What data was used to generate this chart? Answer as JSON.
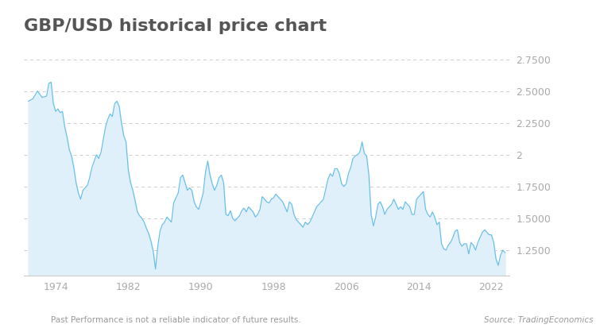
{
  "title": "GBP/USD historical price chart",
  "subtitle_left": "Past Performance is not a reliable indicator of future results.",
  "subtitle_right": "Source: TradingEconomics",
  "yticks": [
    1.25,
    1.5,
    1.75,
    2.0,
    2.25,
    2.5,
    2.75
  ],
  "ytick_labels": [
    "1.2500",
    "1.5000",
    "1.7500",
    "2",
    "2.2500",
    "2.5000",
    "2.7500"
  ],
  "xtick_years": [
    1974,
    1982,
    1990,
    1998,
    2006,
    2014,
    2022
  ],
  "ylim_bottom": 1.05,
  "ylim_top": 2.85,
  "line_color": "#62bde8",
  "fill_color_top": "#c8e8f5",
  "fill_color_bottom": "#dff0fa",
  "background_color": "#ffffff",
  "title_fontsize": 16,
  "tick_fontsize": 9,
  "subtitle_fontsize": 7.5,
  "title_color": "#555555",
  "tick_color": "#aaaaaa",
  "grid_color": "#cccccc",
  "gbpusd_data": [
    [
      1971.0,
      2.42
    ],
    [
      1971.5,
      2.44
    ],
    [
      1972.0,
      2.5
    ],
    [
      1972.5,
      2.45
    ],
    [
      1973.0,
      2.46
    ],
    [
      1973.25,
      2.56
    ],
    [
      1973.5,
      2.57
    ],
    [
      1973.75,
      2.4
    ],
    [
      1974.0,
      2.34
    ],
    [
      1974.25,
      2.36
    ],
    [
      1974.5,
      2.33
    ],
    [
      1974.75,
      2.34
    ],
    [
      1975.0,
      2.22
    ],
    [
      1975.25,
      2.14
    ],
    [
      1975.5,
      2.04
    ],
    [
      1975.75,
      1.99
    ],
    [
      1976.0,
      1.9
    ],
    [
      1976.25,
      1.78
    ],
    [
      1976.5,
      1.7
    ],
    [
      1976.75,
      1.65
    ],
    [
      1977.0,
      1.72
    ],
    [
      1977.25,
      1.74
    ],
    [
      1977.5,
      1.76
    ],
    [
      1977.75,
      1.82
    ],
    [
      1978.0,
      1.9
    ],
    [
      1978.25,
      1.95
    ],
    [
      1978.5,
      2.0
    ],
    [
      1978.75,
      1.97
    ],
    [
      1979.0,
      2.02
    ],
    [
      1979.25,
      2.12
    ],
    [
      1979.5,
      2.22
    ],
    [
      1979.75,
      2.28
    ],
    [
      1980.0,
      2.32
    ],
    [
      1980.25,
      2.3
    ],
    [
      1980.5,
      2.4
    ],
    [
      1980.75,
      2.42
    ],
    [
      1981.0,
      2.38
    ],
    [
      1981.25,
      2.25
    ],
    [
      1981.5,
      2.15
    ],
    [
      1981.75,
      2.1
    ],
    [
      1982.0,
      1.88
    ],
    [
      1982.25,
      1.78
    ],
    [
      1982.5,
      1.72
    ],
    [
      1982.75,
      1.64
    ],
    [
      1983.0,
      1.55
    ],
    [
      1983.25,
      1.52
    ],
    [
      1983.5,
      1.5
    ],
    [
      1983.75,
      1.47
    ],
    [
      1984.0,
      1.42
    ],
    [
      1984.25,
      1.38
    ],
    [
      1984.5,
      1.32
    ],
    [
      1984.75,
      1.24
    ],
    [
      1985.0,
      1.1
    ],
    [
      1985.25,
      1.28
    ],
    [
      1985.5,
      1.4
    ],
    [
      1985.75,
      1.45
    ],
    [
      1986.0,
      1.47
    ],
    [
      1986.25,
      1.51
    ],
    [
      1986.5,
      1.49
    ],
    [
      1986.75,
      1.47
    ],
    [
      1987.0,
      1.62
    ],
    [
      1987.25,
      1.66
    ],
    [
      1987.5,
      1.7
    ],
    [
      1987.75,
      1.82
    ],
    [
      1988.0,
      1.84
    ],
    [
      1988.25,
      1.78
    ],
    [
      1988.5,
      1.72
    ],
    [
      1988.75,
      1.74
    ],
    [
      1989.0,
      1.72
    ],
    [
      1989.25,
      1.63
    ],
    [
      1989.5,
      1.59
    ],
    [
      1989.75,
      1.57
    ],
    [
      1990.0,
      1.63
    ],
    [
      1990.25,
      1.7
    ],
    [
      1990.5,
      1.86
    ],
    [
      1990.75,
      1.95
    ],
    [
      1991.0,
      1.84
    ],
    [
      1991.25,
      1.77
    ],
    [
      1991.5,
      1.72
    ],
    [
      1991.75,
      1.76
    ],
    [
      1992.0,
      1.82
    ],
    [
      1992.25,
      1.84
    ],
    [
      1992.5,
      1.78
    ],
    [
      1992.75,
      1.53
    ],
    [
      1993.0,
      1.52
    ],
    [
      1993.25,
      1.56
    ],
    [
      1993.5,
      1.5
    ],
    [
      1993.75,
      1.48
    ],
    [
      1994.0,
      1.5
    ],
    [
      1994.25,
      1.52
    ],
    [
      1994.5,
      1.56
    ],
    [
      1994.75,
      1.58
    ],
    [
      1995.0,
      1.55
    ],
    [
      1995.25,
      1.59
    ],
    [
      1995.5,
      1.57
    ],
    [
      1995.75,
      1.55
    ],
    [
      1996.0,
      1.51
    ],
    [
      1996.25,
      1.53
    ],
    [
      1996.5,
      1.57
    ],
    [
      1996.75,
      1.67
    ],
    [
      1997.0,
      1.65
    ],
    [
      1997.25,
      1.63
    ],
    [
      1997.5,
      1.62
    ],
    [
      1997.75,
      1.65
    ],
    [
      1998.0,
      1.66
    ],
    [
      1998.25,
      1.69
    ],
    [
      1998.5,
      1.67
    ],
    [
      1998.75,
      1.65
    ],
    [
      1999.0,
      1.63
    ],
    [
      1999.25,
      1.59
    ],
    [
      1999.5,
      1.55
    ],
    [
      1999.75,
      1.63
    ],
    [
      2000.0,
      1.61
    ],
    [
      2000.25,
      1.53
    ],
    [
      2000.5,
      1.49
    ],
    [
      2000.75,
      1.47
    ],
    [
      2001.0,
      1.45
    ],
    [
      2001.25,
      1.43
    ],
    [
      2001.5,
      1.47
    ],
    [
      2001.75,
      1.45
    ],
    [
      2002.0,
      1.47
    ],
    [
      2002.25,
      1.51
    ],
    [
      2002.5,
      1.55
    ],
    [
      2002.75,
      1.59
    ],
    [
      2003.0,
      1.61
    ],
    [
      2003.25,
      1.63
    ],
    [
      2003.5,
      1.65
    ],
    [
      2003.75,
      1.73
    ],
    [
      2004.0,
      1.81
    ],
    [
      2004.25,
      1.85
    ],
    [
      2004.5,
      1.83
    ],
    [
      2004.75,
      1.89
    ],
    [
      2005.0,
      1.89
    ],
    [
      2005.25,
      1.85
    ],
    [
      2005.5,
      1.77
    ],
    [
      2005.75,
      1.75
    ],
    [
      2006.0,
      1.77
    ],
    [
      2006.25,
      1.85
    ],
    [
      2006.5,
      1.9
    ],
    [
      2006.75,
      1.97
    ],
    [
      2007.0,
      1.99
    ],
    [
      2007.25,
      2.0
    ],
    [
      2007.5,
      2.02
    ],
    [
      2007.75,
      2.1
    ],
    [
      2008.0,
      2.01
    ],
    [
      2008.25,
      1.99
    ],
    [
      2008.5,
      1.84
    ],
    [
      2008.75,
      1.53
    ],
    [
      2009.0,
      1.44
    ],
    [
      2009.25,
      1.51
    ],
    [
      2009.5,
      1.61
    ],
    [
      2009.75,
      1.63
    ],
    [
      2010.0,
      1.59
    ],
    [
      2010.25,
      1.53
    ],
    [
      2010.5,
      1.57
    ],
    [
      2010.75,
      1.59
    ],
    [
      2011.0,
      1.61
    ],
    [
      2011.25,
      1.65
    ],
    [
      2011.5,
      1.61
    ],
    [
      2011.75,
      1.57
    ],
    [
      2012.0,
      1.59
    ],
    [
      2012.25,
      1.57
    ],
    [
      2012.5,
      1.63
    ],
    [
      2012.75,
      1.61
    ],
    [
      2013.0,
      1.59
    ],
    [
      2013.25,
      1.53
    ],
    [
      2013.5,
      1.53
    ],
    [
      2013.75,
      1.65
    ],
    [
      2014.0,
      1.67
    ],
    [
      2014.25,
      1.69
    ],
    [
      2014.5,
      1.71
    ],
    [
      2014.75,
      1.57
    ],
    [
      2015.0,
      1.53
    ],
    [
      2015.25,
      1.51
    ],
    [
      2015.5,
      1.55
    ],
    [
      2015.75,
      1.51
    ],
    [
      2016.0,
      1.45
    ],
    [
      2016.25,
      1.47
    ],
    [
      2016.5,
      1.3
    ],
    [
      2016.75,
      1.26
    ],
    [
      2017.0,
      1.25
    ],
    [
      2017.25,
      1.29
    ],
    [
      2017.5,
      1.31
    ],
    [
      2017.75,
      1.35
    ],
    [
      2018.0,
      1.4
    ],
    [
      2018.25,
      1.41
    ],
    [
      2018.5,
      1.31
    ],
    [
      2018.75,
      1.28
    ],
    [
      2019.0,
      1.3
    ],
    [
      2019.25,
      1.3
    ],
    [
      2019.5,
      1.22
    ],
    [
      2019.75,
      1.31
    ],
    [
      2020.0,
      1.29
    ],
    [
      2020.25,
      1.25
    ],
    [
      2020.5,
      1.31
    ],
    [
      2020.75,
      1.35
    ],
    [
      2021.0,
      1.39
    ],
    [
      2021.25,
      1.41
    ],
    [
      2021.5,
      1.39
    ],
    [
      2021.75,
      1.37
    ],
    [
      2022.0,
      1.37
    ],
    [
      2022.25,
      1.31
    ],
    [
      2022.5,
      1.18
    ],
    [
      2022.75,
      1.13
    ],
    [
      2023.0,
      1.21
    ],
    [
      2023.25,
      1.25
    ],
    [
      2023.5,
      1.23
    ]
  ]
}
